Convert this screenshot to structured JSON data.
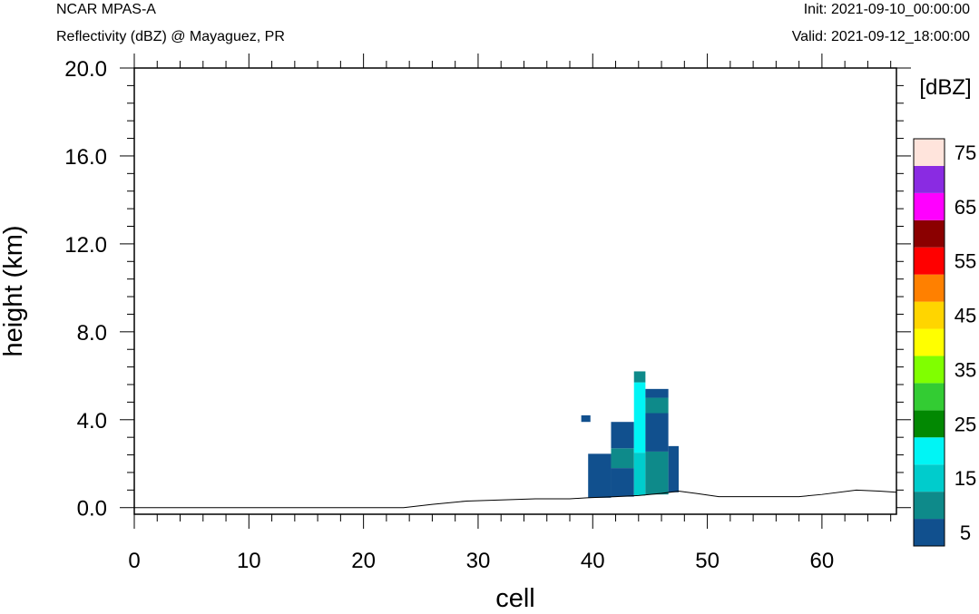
{
  "header": {
    "model": "NCAR MPAS-A",
    "field": "Reflectivity (dBZ) @ Mayaguez, PR",
    "init": "Init: 2021-09-10_00:00:00",
    "valid": "Valid: 2021-09-12_18:00:00"
  },
  "chart_data": {
    "type": "heatmap",
    "title": "Reflectivity (dBZ) @ Mayaguez, PR",
    "xlabel": "cell",
    "ylabel": "height (km)",
    "xlim": [
      0,
      66.5
    ],
    "ylim": [
      -0.3,
      20.0
    ],
    "x_ticks": [
      "0",
      "10",
      "20",
      "30",
      "40",
      "50",
      "60"
    ],
    "y_ticks": [
      "0.0",
      "4.0",
      "8.0",
      "12.0",
      "16.0",
      "20.0"
    ],
    "colorbar": {
      "unit_label": "[dBZ]",
      "levels_low_to_high": [
        5,
        10,
        15,
        20,
        25,
        30,
        35,
        40,
        45,
        50,
        55,
        60,
        65,
        70,
        75
      ],
      "colors_low_to_high": [
        "#11508e",
        "#0e8a8a",
        "#00cccc",
        "#00f5f5",
        "#028802",
        "#33cc33",
        "#80ff00",
        "#ffff00",
        "#ffd500",
        "#ff8000",
        "#ff0000",
        "#8b0000",
        "#ff00ff",
        "#8a2be2",
        "#ffe4dc"
      ],
      "tick_labels": [
        "5",
        "15",
        "25",
        "35",
        "45",
        "55",
        "65",
        "75"
      ]
    },
    "terrain": [
      [
        0,
        0.0
      ],
      [
        23.5,
        0.0
      ],
      [
        26,
        0.15
      ],
      [
        29,
        0.3
      ],
      [
        32,
        0.35
      ],
      [
        35,
        0.4
      ],
      [
        38,
        0.4
      ],
      [
        39.5,
        0.45
      ],
      [
        42,
        0.5
      ],
      [
        44,
        0.55
      ],
      [
        46,
        0.65
      ],
      [
        47.5,
        0.75
      ],
      [
        49,
        0.65
      ],
      [
        51,
        0.5
      ],
      [
        55,
        0.5
      ],
      [
        58,
        0.5
      ],
      [
        60,
        0.6
      ],
      [
        63,
        0.8
      ],
      [
        65,
        0.75
      ],
      [
        66.5,
        0.7
      ]
    ],
    "cells": [
      {
        "x0": 39.0,
        "x1": 39.8,
        "y0": 3.9,
        "y1": 4.2,
        "dbz": 5
      },
      {
        "x0": 39.6,
        "x1": 41.6,
        "y0": 0.45,
        "y1": 2.45,
        "dbz": 5
      },
      {
        "x0": 41.6,
        "x1": 43.6,
        "y0": 0.5,
        "y1": 1.8,
        "dbz": 5
      },
      {
        "x0": 41.6,
        "x1": 43.6,
        "y0": 1.8,
        "y1": 2.7,
        "dbz": 10
      },
      {
        "x0": 41.6,
        "x1": 43.6,
        "y0": 2.7,
        "y1": 3.9,
        "dbz": 5
      },
      {
        "x0": 43.6,
        "x1": 44.6,
        "y0": 0.55,
        "y1": 2.5,
        "dbz": 15
      },
      {
        "x0": 43.6,
        "x1": 44.6,
        "y0": 2.5,
        "y1": 5.7,
        "dbz": 20
      },
      {
        "x0": 43.6,
        "x1": 44.6,
        "y0": 5.7,
        "y1": 6.2,
        "dbz": 10
      },
      {
        "x0": 44.6,
        "x1": 46.6,
        "y0": 0.6,
        "y1": 2.55,
        "dbz": 10
      },
      {
        "x0": 44.6,
        "x1": 46.6,
        "y0": 2.55,
        "y1": 4.3,
        "dbz": 5
      },
      {
        "x0": 44.6,
        "x1": 46.6,
        "y0": 4.3,
        "y1": 5.0,
        "dbz": 10
      },
      {
        "x0": 44.6,
        "x1": 46.6,
        "y0": 5.0,
        "y1": 5.4,
        "dbz": 5
      },
      {
        "x0": 46.6,
        "x1": 47.5,
        "y0": 0.7,
        "y1": 2.8,
        "dbz": 5
      }
    ]
  }
}
